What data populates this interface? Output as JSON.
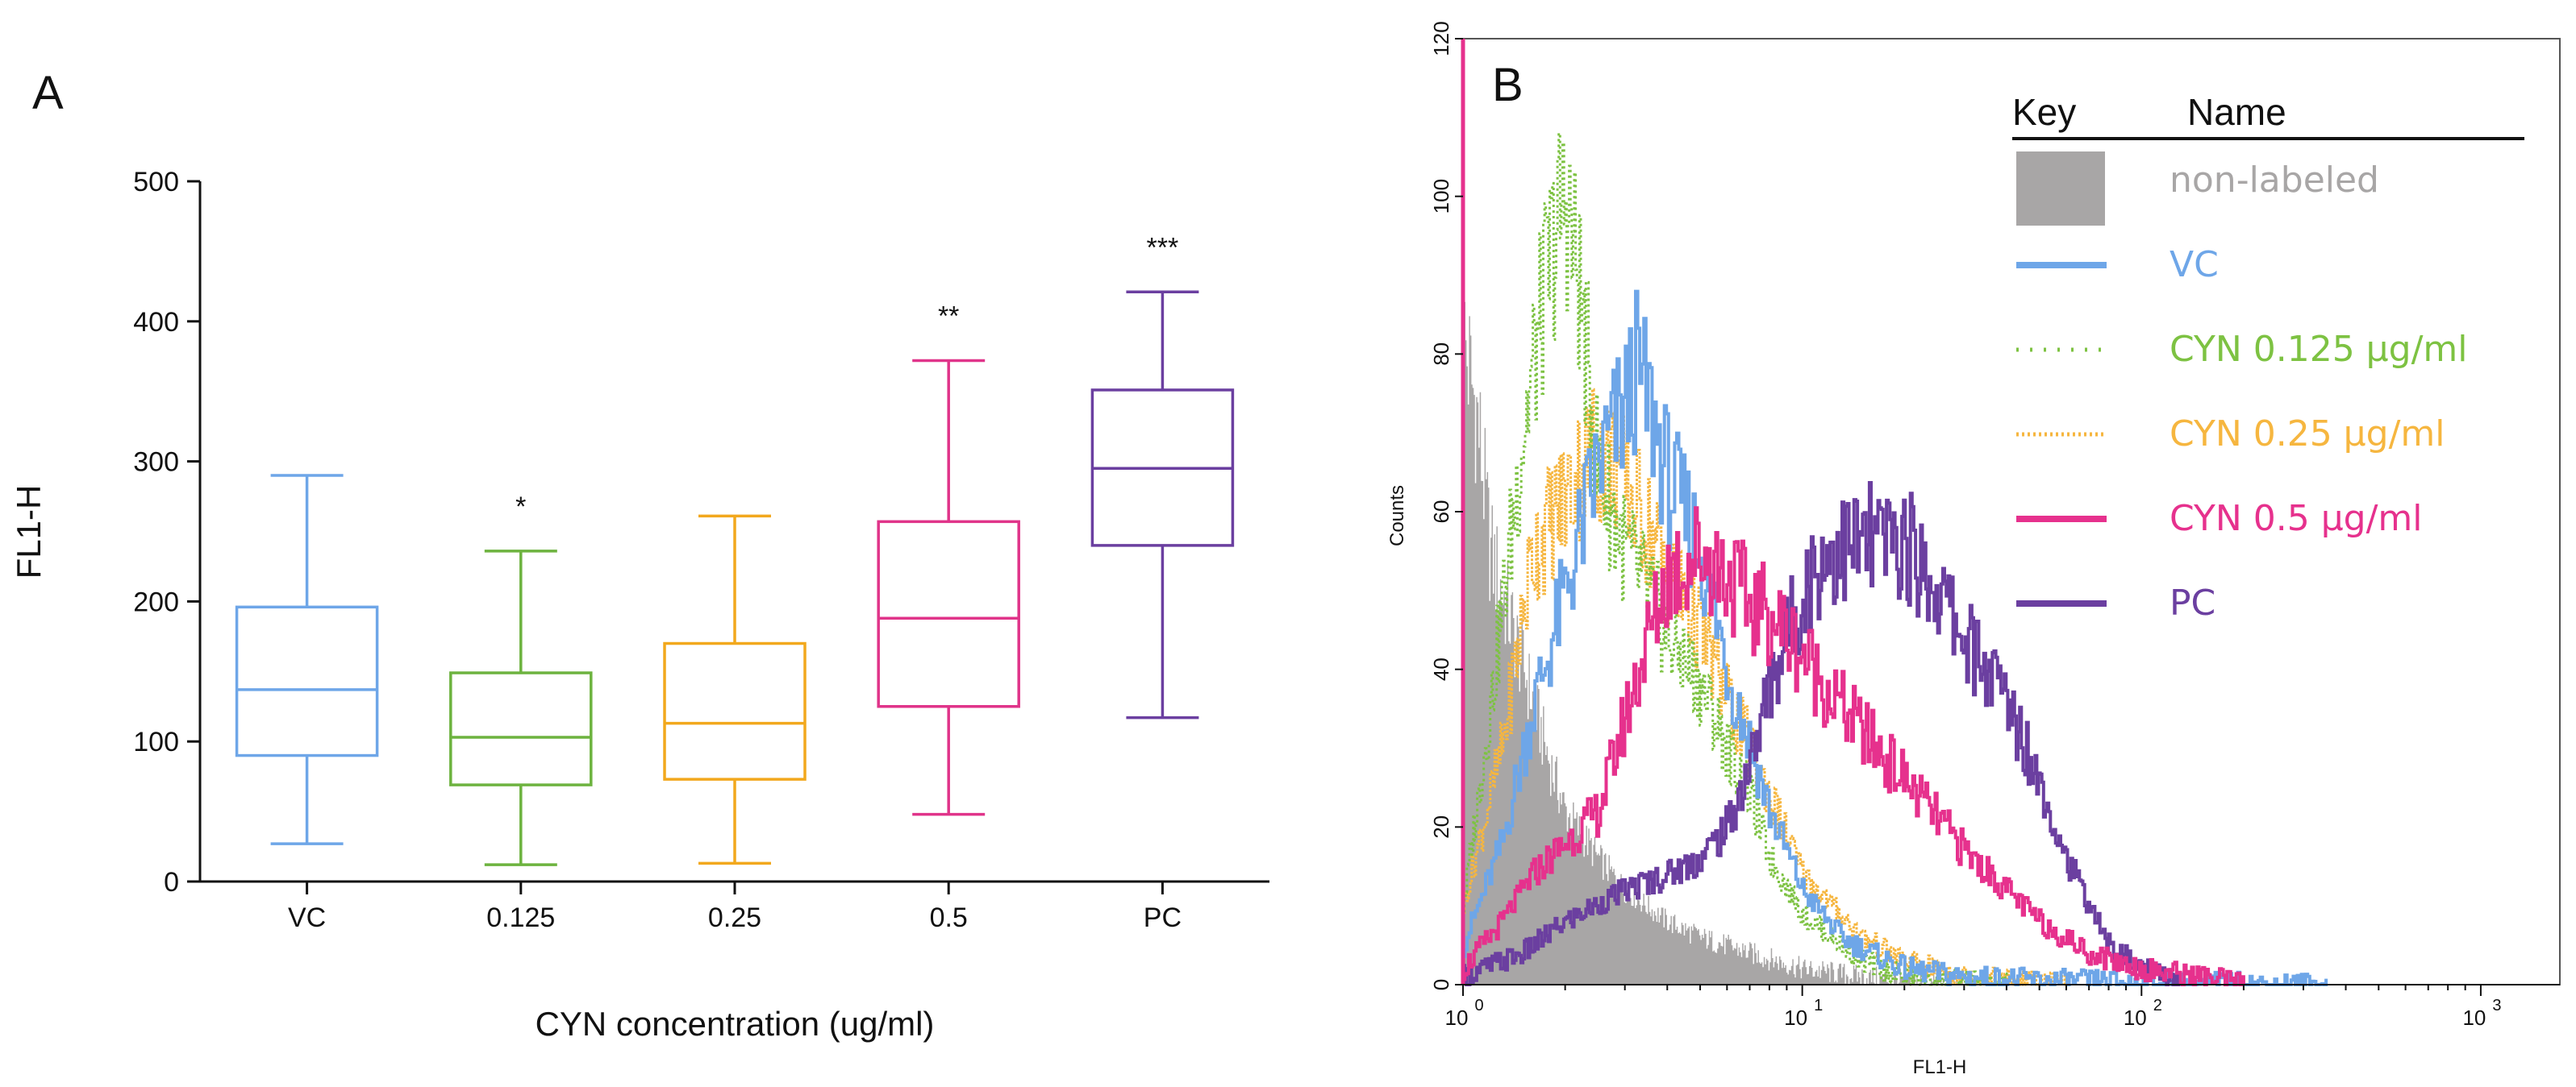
{
  "chart_data": [
    {
      "panel": "A",
      "type": "box",
      "xlabel": "CYN concentration (ug/ml)",
      "ylabel": "FL1-H",
      "ylim": [
        0,
        500
      ],
      "yticks": [
        "0",
        "100",
        "200",
        "300",
        "400",
        "500"
      ],
      "categories": [
        "VC",
        "0.125",
        "0.25",
        "0.5",
        "PC"
      ],
      "boxes": [
        {
          "name": "VC",
          "min": 27,
          "q1": 90,
          "median": 137,
          "q3": 196,
          "max": 290,
          "color": "#6ea6e8",
          "significance": ""
        },
        {
          "name": "0.125",
          "min": 12,
          "q1": 69,
          "median": 103,
          "q3": 149,
          "max": 236,
          "color": "#6db33f",
          "significance": "*"
        },
        {
          "name": "0.25",
          "min": 13,
          "q1": 73,
          "median": 113,
          "q3": 170,
          "max": 261,
          "color": "#f2a81d",
          "significance": ""
        },
        {
          "name": "0.5",
          "min": 48,
          "q1": 125,
          "median": 188,
          "q3": 257,
          "max": 372,
          "color": "#e0348a",
          "significance": "**"
        },
        {
          "name": "PC",
          "min": 117,
          "q1": 240,
          "median": 295,
          "q3": 351,
          "max": 421,
          "color": "#6b3fa0",
          "significance": "***"
        }
      ]
    },
    {
      "panel": "B",
      "type": "line",
      "xscale": "log",
      "xlabel": "FL1-H",
      "ylabel": "Counts",
      "xlim": [
        1,
        1500
      ],
      "ylim": [
        0,
        120
      ],
      "yticks": [
        "0",
        "20",
        "40",
        "60",
        "80",
        "100",
        "120"
      ],
      "xticks": [
        {
          "base": "10",
          "exp": "0",
          "value": 1
        },
        {
          "base": "10",
          "exp": "1",
          "value": 10
        },
        {
          "base": "10",
          "exp": "2",
          "value": 100
        },
        {
          "base": "10",
          "exp": "3",
          "value": 1000
        }
      ],
      "legend_header": {
        "key": "Key",
        "name": "Name"
      },
      "series": [
        {
          "name": "non-labeled",
          "color": "#a8a6a6",
          "style": "fill",
          "x": [
            1.0,
            1.1,
            1.2,
            1.4,
            1.6,
            1.8,
            2.0,
            2.5,
            3.0,
            4.0,
            5.0,
            7.0,
            10,
            15,
            20,
            30
          ],
          "y": [
            82,
            72,
            55,
            45,
            36,
            28,
            22,
            16,
            12,
            8,
            6,
            4,
            2,
            1,
            0.5,
            0
          ]
        },
        {
          "name": "VC",
          "color": "#6ea6e8",
          "style": "solid",
          "x": [
            1.0,
            1.3,
            1.6,
            2.0,
            2.5,
            3.0,
            3.2,
            3.6,
            4.0,
            5.0,
            6.0,
            8.0,
            10,
            13,
            16,
            20,
            30,
            50,
            100,
            200,
            350
          ],
          "y": [
            5,
            18,
            35,
            50,
            66,
            73,
            78,
            72,
            64,
            55,
            40,
            22,
            12,
            6,
            4,
            2,
            1,
            0.5,
            0.3,
            0.1,
            0
          ]
        },
        {
          "name": "CYN 0.125 µg/ml",
          "color": "#7dc242",
          "style": "dotted",
          "x": [
            1.0,
            1.2,
            1.5,
            1.8,
            2.0,
            2.2,
            2.5,
            3.0,
            3.5,
            4.0,
            5.0,
            6.0,
            7.0,
            8.0,
            10,
            15,
            20,
            40
          ],
          "y": [
            10,
            35,
            70,
            92,
            100,
            88,
            65,
            55,
            50,
            44,
            38,
            30,
            24,
            16,
            9,
            3,
            1,
            0
          ]
        },
        {
          "name": "CYN 0.25 µg/ml",
          "color": "#f6b63f",
          "style": "dotted-dense",
          "x": [
            1.0,
            1.3,
            1.6,
            2.0,
            2.4,
            2.8,
            3.5,
            4.0,
            5.0,
            6.0,
            7.0,
            8.0,
            10,
            15,
            20,
            30,
            60
          ],
          "y": [
            10,
            30,
            55,
            62,
            68,
            66,
            58,
            52,
            45,
            36,
            30,
            24,
            14,
            6,
            3,
            1,
            0
          ]
        },
        {
          "name": "CYN 0.5 µg/ml",
          "color": "#e6318d",
          "style": "solid",
          "x": [
            1.0,
            1.3,
            1.6,
            2.0,
            2.5,
            3.0,
            3.5,
            4.0,
            5.0,
            6.0,
            7.0,
            8.0,
            10,
            12,
            15,
            20,
            25,
            30,
            40,
            50,
            70,
            100,
            150,
            200
          ],
          "y": [
            2,
            8,
            14,
            18,
            22,
            34,
            44,
            52,
            55,
            52,
            48,
            47,
            42,
            37,
            32,
            26,
            21,
            17,
            12,
            8,
            4,
            2,
            1,
            0
          ]
        },
        {
          "name": "PC",
          "color": "#6b3fa0",
          "style": "solid",
          "x": [
            1.0,
            1.5,
            2.0,
            3.0,
            4.0,
            5.0,
            6.0,
            7.0,
            8.0,
            10,
            12,
            15,
            20,
            25,
            30,
            40,
            50,
            60,
            70,
            80,
            100,
            130
          ],
          "y": [
            1,
            4,
            8,
            12,
            14,
            16,
            20,
            28,
            38,
            50,
            55,
            56,
            56,
            50,
            44,
            36,
            26,
            16,
            10,
            5,
            2,
            0
          ]
        }
      ]
    }
  ]
}
